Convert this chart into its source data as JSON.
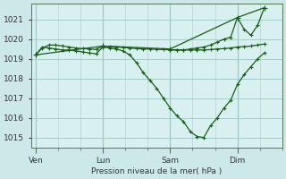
{
  "background_color": "#cce8e8",
  "plot_bg_color": "#d8f0f0",
  "grid_color": "#a8cccc",
  "line_color": "#1a5c1a",
  "marker_color": "#1a5c1a",
  "xlabel": "Pression niveau de la mer( hPa )",
  "ylim": [
    1014.5,
    1021.8
  ],
  "yticks": [
    1015,
    1016,
    1017,
    1018,
    1019,
    1020,
    1021
  ],
  "xtick_labels": [
    "Ven",
    "Lun",
    "Sam",
    "Dim"
  ],
  "xtick_positions": [
    0,
    30,
    60,
    90
  ],
  "xlim": [
    -2,
    110
  ],
  "vline_positions": [
    0,
    30,
    60,
    90
  ],
  "s1_x": [
    0,
    3,
    6,
    9,
    12,
    15,
    18,
    21,
    24,
    27,
    30,
    33,
    36,
    39,
    42,
    45,
    48,
    51,
    54,
    57,
    60,
    63,
    66,
    69,
    72,
    75,
    78,
    81,
    84,
    87,
    90,
    93,
    96,
    99,
    102
  ],
  "s1_y": [
    1019.2,
    1019.6,
    1019.55,
    1019.5,
    1019.45,
    1019.45,
    1019.4,
    1019.35,
    1019.3,
    1019.25,
    1019.6,
    1019.55,
    1019.5,
    1019.4,
    1019.2,
    1018.8,
    1018.3,
    1017.9,
    1017.5,
    1017.0,
    1016.5,
    1016.1,
    1015.8,
    1015.3,
    1015.05,
    1015.0,
    1015.6,
    1016.0,
    1016.5,
    1016.9,
    1017.7,
    1018.2,
    1018.6,
    1019.0,
    1019.3
  ],
  "s2_x": [
    0,
    3,
    6,
    9,
    12,
    15,
    18,
    21,
    24,
    27,
    30,
    33,
    36,
    39,
    42,
    45,
    48,
    51,
    54,
    57,
    60,
    63,
    66,
    69,
    72,
    75,
    78,
    81,
    84,
    87,
    90,
    93,
    96,
    99,
    102
  ],
  "s2_y": [
    1019.2,
    1019.55,
    1019.7,
    1019.7,
    1019.65,
    1019.6,
    1019.55,
    1019.52,
    1019.5,
    1019.48,
    1019.65,
    1019.62,
    1019.6,
    1019.58,
    1019.55,
    1019.52,
    1019.5,
    1019.5,
    1019.48,
    1019.47,
    1019.46,
    1019.46,
    1019.45,
    1019.45,
    1019.45,
    1019.45,
    1019.47,
    1019.5,
    1019.52,
    1019.55,
    1019.6,
    1019.62,
    1019.65,
    1019.7,
    1019.75
  ],
  "s3_x": [
    0,
    30,
    60,
    90,
    102
  ],
  "s3_y": [
    1019.2,
    1019.65,
    1019.5,
    1021.1,
    1021.6
  ],
  "s4_x": [
    60,
    63,
    66,
    69,
    72,
    75,
    78,
    81,
    84,
    87,
    90,
    93,
    96,
    99,
    102
  ],
  "s4_y": [
    1019.45,
    1019.45,
    1019.45,
    1019.5,
    1019.55,
    1019.6,
    1019.7,
    1019.85,
    1020.0,
    1020.1,
    1021.1,
    1020.5,
    1020.2,
    1020.7,
    1021.6
  ]
}
